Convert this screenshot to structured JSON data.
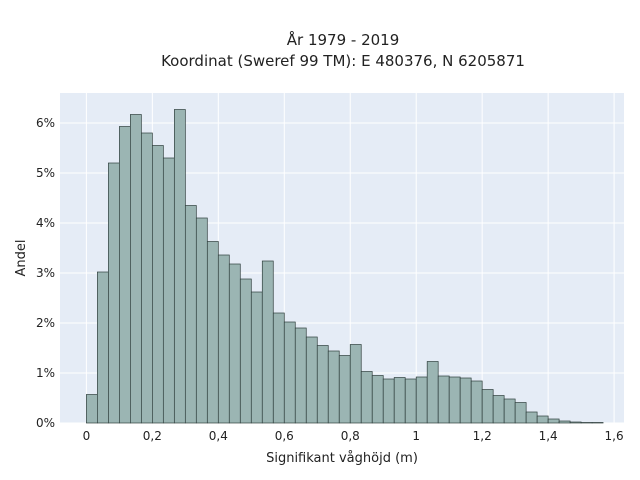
{
  "chart_data": {
    "type": "bar",
    "title_line1": "År 1979 - 2019",
    "title_line2": "Koordinat (Sweref 99 TM): E 480376, N 6205871",
    "xlabel": "Signifikant våghöjd (m)",
    "ylabel": "Andel",
    "xlim": [
      -0.08,
      1.63
    ],
    "ylim": [
      0,
      6.6
    ],
    "bin_width": 0.0333,
    "x_ticks": [
      0,
      0.2,
      0.4,
      0.6,
      0.8,
      1,
      1.2,
      1.4,
      1.6
    ],
    "x_tick_labels": [
      "0",
      "0,2",
      "0,4",
      "0,6",
      "0,8",
      "1",
      "1,2",
      "1,4",
      "1,6"
    ],
    "y_ticks": [
      0,
      1,
      2,
      3,
      4,
      5,
      6
    ],
    "y_tick_labels": [
      "0%",
      "1%",
      "2%",
      "3%",
      "4%",
      "5%",
      "6%"
    ],
    "grid": true,
    "colors": {
      "bar": "#9bb5b3",
      "bar_edge": "#2f3f3d",
      "plot_bg": "#e5ecf6",
      "grid": "#ffffff"
    },
    "bin_starts": [
      0.0,
      0.0333,
      0.0667,
      0.1,
      0.1333,
      0.1667,
      0.2,
      0.2333,
      0.2667,
      0.3,
      0.3333,
      0.3667,
      0.4,
      0.4333,
      0.4667,
      0.5,
      0.5333,
      0.5667,
      0.6,
      0.6333,
      0.6667,
      0.7,
      0.7333,
      0.7667,
      0.8,
      0.8333,
      0.8667,
      0.9,
      0.9333,
      0.9667,
      1.0,
      1.0333,
      1.0667,
      1.1,
      1.1333,
      1.1667,
      1.2,
      1.2333,
      1.2667,
      1.3,
      1.3333,
      1.3667,
      1.4,
      1.4333,
      1.4667,
      1.5,
      1.5333
    ],
    "values": [
      0.57,
      3.02,
      5.2,
      5.93,
      6.17,
      5.8,
      5.55,
      5.3,
      6.27,
      4.35,
      4.1,
      3.63,
      3.36,
      3.18,
      2.88,
      2.62,
      3.24,
      2.2,
      2.02,
      1.9,
      1.72,
      1.55,
      1.44,
      1.35,
      1.57,
      1.03,
      0.95,
      0.88,
      0.91,
      0.88,
      0.92,
      1.23,
      0.94,
      0.92,
      0.9,
      0.84,
      0.67,
      0.55,
      0.48,
      0.41,
      0.22,
      0.14,
      0.08,
      0.04,
      0.02,
      0.01,
      0.01
    ]
  }
}
